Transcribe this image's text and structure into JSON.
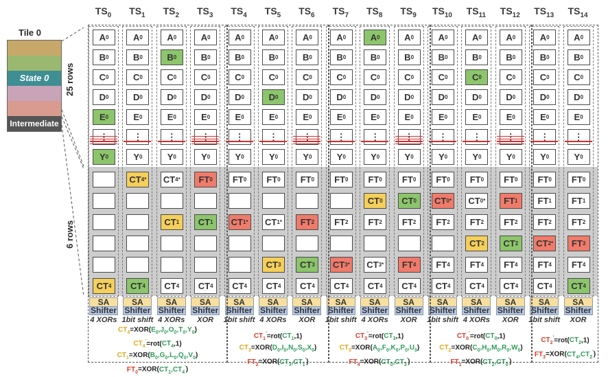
{
  "timesteps": [
    "0",
    "1",
    "2",
    "3",
    "4",
    "5",
    "6",
    "7",
    "8",
    "9",
    "10",
    "11",
    "12",
    "13",
    "14"
  ],
  "ts_prefix": "TS",
  "tile": {
    "title": "Tile 0",
    "state_label": "State 0",
    "intermediate_label": "Intermediate",
    "colors": [
      "#c8a86a",
      "#9ab870",
      "#5e9a6c",
      "#3f8e93",
      "#c9a3b7",
      "#d99b90"
    ]
  },
  "row_labels": {
    "state_rows": "25 rows",
    "intermediate_rows": "6 rows"
  },
  "state_cells": [
    "A",
    "B",
    "C",
    "D",
    "E",
    "⋮",
    "Y"
  ],
  "state_sub": "0",
  "sa_label": "SA",
  "shifter_label": "Shifter",
  "ops": [
    "4 XORs",
    "1bit shift",
    "4 XORs",
    "XOR",
    "1bit shift",
    "4 XORs",
    "XOR",
    "1bit shift",
    "4 XORs",
    "XOR",
    "1bit shift",
    "4 XORs",
    "XOR",
    "1bit shift",
    "XOR"
  ],
  "equations": {
    "g1": [
      "CT4=XOR(E0,J0,O0,T0,Y0)",
      "CT4'=rot(CT4,1)",
      "CT1=XOR(B0,G0,L0,Q0,V0)",
      "FT0=XOR(CT1,CT4')"
    ],
    "g2": [
      "CT1'=rot(CT1,1)",
      "CT3=XOR(D0,I0,N0,S0,X0)",
      "FT2=XOR(CT3,CT1')"
    ],
    "g3": [
      "CT3'=rot(CT3,1)",
      "CT0=XOR(A0,F0,K0,P0,U0)",
      "FT4=XOR(CT0,CT3')"
    ],
    "g4": [
      "CT0'=rot(CT0,1)",
      "CT2=XOR(C0,H0,M0,R0,W0)",
      "FT1=XOR(CT2,CT0')"
    ],
    "g5": [
      "CT2'=rot(CT2,1)",
      "FT3=XOR(CT4,CT2')"
    ]
  },
  "intermediate_grid": [
    [
      "",
      "CT4'y",
      "CT4'",
      "FT0r",
      "FT0",
      "FT0",
      "FT0",
      "FT0",
      "FT0",
      "FT0",
      "FT0",
      "FT0",
      "FT0",
      "FT0",
      "FT0"
    ],
    [
      "",
      "",
      "",
      "",
      "",
      "",
      "",
      "",
      "CT0y",
      "CT0g",
      "CT0'r",
      "CT0'",
      "FT1r",
      "FT1",
      "FT1"
    ],
    [
      "",
      "",
      "CT1y",
      "CT1g",
      "CT1'r",
      "CT1'",
      "FT2r",
      "FT2",
      "FT2",
      "FT2",
      "FT2",
      "FT2",
      "FT2",
      "FT2",
      "FT2"
    ],
    [
      "",
      "",
      "",
      "",
      "",
      "",
      "",
      "",
      "",
      "",
      "",
      "CT2y",
      "CT2g",
      "CT2'r",
      "FT3r"
    ],
    [
      "",
      "",
      "",
      "",
      "",
      "CT3y",
      "CT3g",
      "CT3'r",
      "CT3'",
      "FT4r",
      "FT4",
      "FT4",
      "FT4",
      "FT4",
      "FT4"
    ],
    [
      "CT4y",
      "CT4g",
      "CT4",
      "CT4",
      "CT4",
      "CT4",
      "CT4",
      "CT4",
      "CT4",
      "CT4",
      "CT4",
      "CT4",
      "CT4",
      "CT4",
      "CT4g"
    ]
  ],
  "state_highlight": {
    "0": 4,
    "0b": 6,
    "2": 1,
    "5": 3,
    "8": 0,
    "11": 2
  }
}
